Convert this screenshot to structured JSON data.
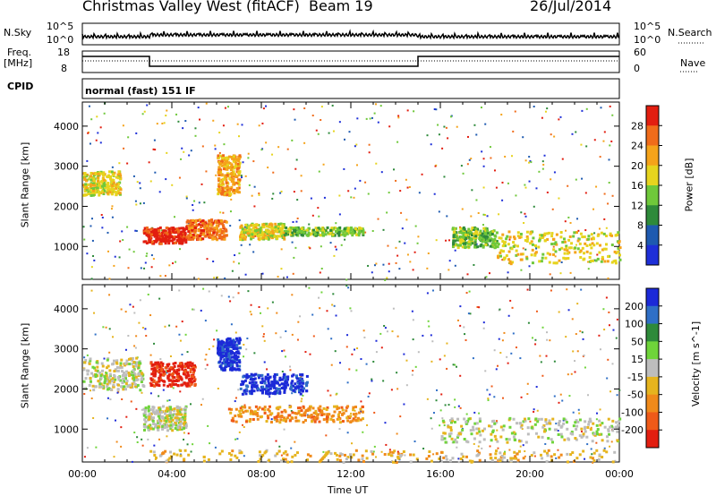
{
  "header": {
    "title": "Christmas Valley West (fitACF)",
    "beam": "Beam 19",
    "date": "26/Jul/2014"
  },
  "params": {
    "nsky_label": "N.Sky",
    "nsearch_label": "N.Search",
    "nsky_ticks": [
      "10^5",
      "10^0"
    ],
    "nsearch_ticks": [
      "10^5",
      "10^0"
    ],
    "freq_label": "Freq.",
    "freq_unit": "[MHz]",
    "freq_ticks": [
      "18",
      "8"
    ],
    "nave_label": "Nave",
    "nave_ticks": [
      "60",
      "0"
    ],
    "cpid_label": "CPID",
    "cpid_text": "normal (fast) 151 IF"
  },
  "colors": {
    "power": [
      "#1e2fd8",
      "#1e5ab0",
      "#2e8a3a",
      "#6fc83a",
      "#e6d41e",
      "#f5a31a",
      "#f06c1a",
      "#e21e10"
    ],
    "velocity": [
      "#1c2ad8",
      "#2f6fc6",
      "#2e8a3a",
      "#6fd43a",
      "#bdbdbd",
      "#e6b41e",
      "#f08a1a",
      "#ef5a18",
      "#e21e10"
    ]
  },
  "chart_data": [
    {
      "type": "heatmap",
      "name": "power",
      "xlabel": "",
      "ylabel": "Slant Range [km]",
      "y_ticks": [
        1000,
        2000,
        3000,
        4000
      ],
      "ylim": [
        180,
        4600
      ],
      "colorbar": {
        "label": "Power [dB]",
        "ticks": [
          4,
          8,
          12,
          16,
          20,
          24,
          28
        ]
      },
      "features": [
        {
          "x": [
            0.0,
            1.7
          ],
          "y": [
            2300,
            2900
          ],
          "level": 4
        },
        {
          "x": [
            2.7,
            4.6
          ],
          "y": [
            1100,
            1500
          ],
          "level": 7
        },
        {
          "x": [
            4.6,
            6.4
          ],
          "y": [
            1200,
            1700
          ],
          "level": 6
        },
        {
          "x": [
            6.0,
            7.0
          ],
          "y": [
            2300,
            3300
          ],
          "level": 5
        },
        {
          "x": [
            7.0,
            9.0
          ],
          "y": [
            1200,
            1600
          ],
          "level": 4
        },
        {
          "x": [
            9.0,
            12.5
          ],
          "y": [
            1300,
            1500
          ],
          "level": 3
        },
        {
          "x": [
            16.5,
            18.5
          ],
          "y": [
            1000,
            1500
          ],
          "level": 3
        },
        {
          "x": [
            18.5,
            24.0
          ],
          "y": [
            600,
            1400
          ],
          "level": 4
        }
      ]
    },
    {
      "type": "heatmap",
      "name": "velocity",
      "xlabel": "Time UT",
      "x_ticks": [
        "00:00",
        "04:00",
        "08:00",
        "12:00",
        "16:00",
        "20:00",
        "00:00"
      ],
      "ylabel": "Slant Range [km]",
      "y_ticks": [
        1000,
        2000,
        3000,
        4000
      ],
      "ylim": [
        180,
        4600
      ],
      "colorbar": {
        "label": "Velocity [m s^-1]",
        "ticks": [
          200,
          100,
          50,
          15,
          -15,
          -50,
          -100,
          -200
        ]
      },
      "features": [
        {
          "x": [
            0.0,
            2.7
          ],
          "y": [
            2000,
            2800
          ],
          "level": 4
        },
        {
          "x": [
            2.7,
            4.6
          ],
          "y": [
            1000,
            1600
          ],
          "level": 4
        },
        {
          "x": [
            3.0,
            5.0
          ],
          "y": [
            2100,
            2700
          ],
          "level": 8
        },
        {
          "x": [
            6.0,
            7.0
          ],
          "y": [
            2500,
            3300
          ],
          "level": 0
        },
        {
          "x": [
            7.0,
            10.0
          ],
          "y": [
            1900,
            2400
          ],
          "level": 0
        },
        {
          "x": [
            6.5,
            12.5
          ],
          "y": [
            1200,
            1600
          ],
          "level": 6
        },
        {
          "x": [
            16.0,
            24.0
          ],
          "y": [
            700,
            1300
          ],
          "level": 4
        },
        {
          "x": [
            3.0,
            24.0
          ],
          "y": [
            200,
            500
          ],
          "level": 5
        }
      ]
    }
  ]
}
